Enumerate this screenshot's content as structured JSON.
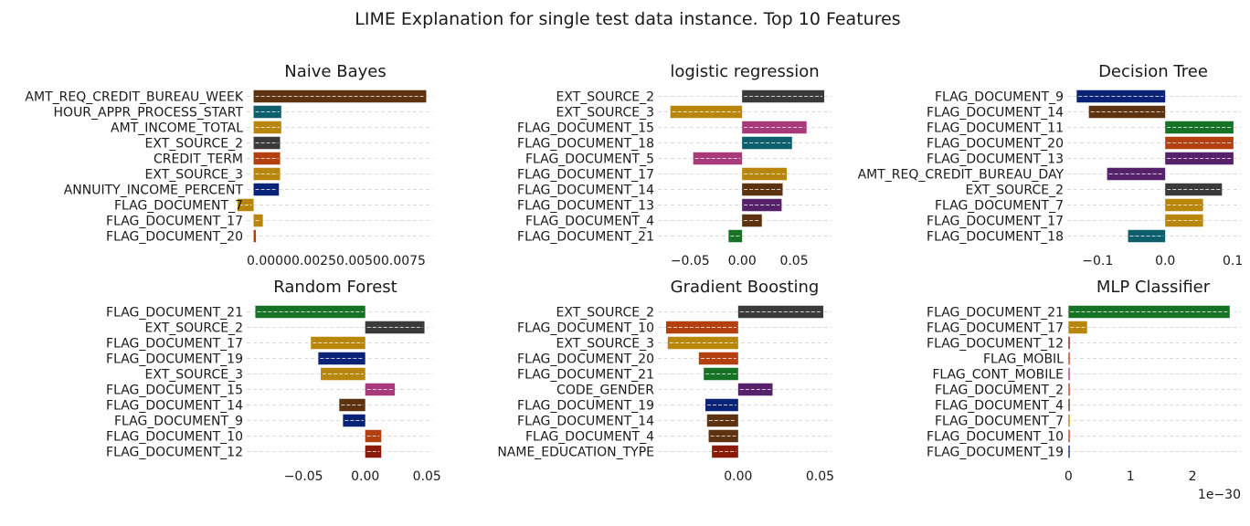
{
  "figure": {
    "title": "LIME Explanation for single test data instance.  Top 10 Features"
  },
  "chart_data": [
    {
      "type": "bar",
      "orientation": "horizontal",
      "title": "Naive Bayes",
      "xlim": [
        -0.0003,
        0.0078
      ],
      "xticks": [
        {
          "v": 0.0,
          "label": "0.0000"
        },
        {
          "v": 0.0025,
          "label": "0.0025"
        },
        {
          "v": 0.005,
          "label": "0.0050"
        },
        {
          "v": 0.0075,
          "label": "0.0075"
        }
      ],
      "xtick_label_combined": "0.00000.00250.00500.0075",
      "grid": true,
      "bars": [
        {
          "feature": "AMT_REQ_CREDIT_BUREAU_WEEK",
          "value": 0.0075,
          "color": "#5c3210"
        },
        {
          "feature": "HOUR_APPR_PROCESS_START",
          "value": 0.0012,
          "color": "#0e5e6b"
        },
        {
          "feature": "AMT_INCOME_TOTAL",
          "value": 0.0012,
          "color": "#b8860b"
        },
        {
          "feature": "EXT_SOURCE_2",
          "value": 0.00115,
          "color": "#3a3a3a"
        },
        {
          "feature": "CREDIT_TERM",
          "value": 0.00115,
          "color": "#b5400f"
        },
        {
          "feature": "EXT_SOURCE_3",
          "value": 0.00115,
          "color": "#b8860b"
        },
        {
          "feature": "ANNUITY_INCOME_PERCENT",
          "value": 0.0011,
          "color": "#0b2376"
        },
        {
          "feature": "FLAG_DOCUMENT_7",
          "value": -0.0007,
          "color": "#b8860b"
        },
        {
          "feature": "FLAG_DOCUMENT_17",
          "value": 0.0004,
          "color": "#b8860b"
        },
        {
          "feature": "FLAG_DOCUMENT_20",
          "value": 0.0001,
          "color": "#b5400f"
        }
      ]
    },
    {
      "type": "bar",
      "orientation": "horizontal",
      "title": "logistic regression",
      "xlim": [
        -0.081,
        0.086
      ],
      "xticks": [
        {
          "v": -0.05,
          "label": "−0.05"
        },
        {
          "v": 0.0,
          "label": "0.00"
        },
        {
          "v": 0.05,
          "label": "0.05"
        }
      ],
      "grid": true,
      "bars": [
        {
          "feature": "EXT_SOURCE_2",
          "value": 0.079,
          "color": "#3a3a3a"
        },
        {
          "feature": "EXT_SOURCE_3",
          "value": -0.069,
          "color": "#b8860b"
        },
        {
          "feature": "FLAG_DOCUMENT_15",
          "value": 0.062,
          "color": "#a83a7c"
        },
        {
          "feature": "FLAG_DOCUMENT_18",
          "value": 0.048,
          "color": "#0e5e6b"
        },
        {
          "feature": "FLAG_DOCUMENT_5",
          "value": -0.047,
          "color": "#a83a7c"
        },
        {
          "feature": "FLAG_DOCUMENT_17",
          "value": 0.043,
          "color": "#b8860b"
        },
        {
          "feature": "FLAG_DOCUMENT_14",
          "value": 0.039,
          "color": "#5c3210"
        },
        {
          "feature": "FLAG_DOCUMENT_13",
          "value": 0.038,
          "color": "#55216b"
        },
        {
          "feature": "FLAG_DOCUMENT_4",
          "value": 0.019,
          "color": "#5c3210"
        },
        {
          "feature": "FLAG_DOCUMENT_21",
          "value": -0.013,
          "color": "#167224"
        }
      ]
    },
    {
      "type": "bar",
      "orientation": "horizontal",
      "title": "Decision Tree",
      "xlim": [
        -0.145,
        0.112
      ],
      "xticks": [
        {
          "v": -0.1,
          "label": "−0.1"
        },
        {
          "v": 0.0,
          "label": "0.0"
        },
        {
          "v": 0.1,
          "label": "0.1"
        }
      ],
      "grid": true,
      "bars": [
        {
          "feature": "FLAG_DOCUMENT_9",
          "value": -0.131,
          "color": "#0b2376"
        },
        {
          "feature": "FLAG_DOCUMENT_14",
          "value": -0.113,
          "color": "#5c3210"
        },
        {
          "feature": "FLAG_DOCUMENT_11",
          "value": 0.101,
          "color": "#167224"
        },
        {
          "feature": "FLAG_DOCUMENT_20",
          "value": 0.101,
          "color": "#b5400f"
        },
        {
          "feature": "FLAG_DOCUMENT_13",
          "value": 0.101,
          "color": "#55216b"
        },
        {
          "feature": "AMT_REQ_CREDIT_BUREAU_DAY",
          "value": -0.086,
          "color": "#55216b"
        },
        {
          "feature": "EXT_SOURCE_2",
          "value": 0.084,
          "color": "#3a3a3a"
        },
        {
          "feature": "FLAG_DOCUMENT_7",
          "value": 0.056,
          "color": "#b8860b"
        },
        {
          "feature": "FLAG_DOCUMENT_17",
          "value": 0.056,
          "color": "#b8860b"
        },
        {
          "feature": "FLAG_DOCUMENT_18",
          "value": -0.055,
          "color": "#0e5e6b"
        }
      ]
    },
    {
      "type": "bar",
      "orientation": "horizontal",
      "title": "Random Forest",
      "xlim": [
        -0.096,
        0.055
      ],
      "xticks": [
        {
          "v": -0.05,
          "label": "−0.05"
        },
        {
          "v": 0.0,
          "label": "0.00"
        },
        {
          "v": 0.05,
          "label": "0.05"
        }
      ],
      "grid": true,
      "bars": [
        {
          "feature": "FLAG_DOCUMENT_21",
          "value": -0.089,
          "color": "#167224"
        },
        {
          "feature": "EXT_SOURCE_2",
          "value": 0.048,
          "color": "#3a3a3a"
        },
        {
          "feature": "FLAG_DOCUMENT_17",
          "value": -0.044,
          "color": "#b8860b"
        },
        {
          "feature": "FLAG_DOCUMENT_19",
          "value": -0.038,
          "color": "#0b2376"
        },
        {
          "feature": "EXT_SOURCE_3",
          "value": -0.036,
          "color": "#b8860b"
        },
        {
          "feature": "FLAG_DOCUMENT_15",
          "value": 0.024,
          "color": "#a83a7c"
        },
        {
          "feature": "FLAG_DOCUMENT_14",
          "value": -0.021,
          "color": "#5c3210"
        },
        {
          "feature": "FLAG_DOCUMENT_9",
          "value": -0.018,
          "color": "#0b2376"
        },
        {
          "feature": "FLAG_DOCUMENT_10",
          "value": 0.013,
          "color": "#b5400f"
        },
        {
          "feature": "FLAG_DOCUMENT_12",
          "value": 0.013,
          "color": "#8b1a0b"
        }
      ]
    },
    {
      "type": "bar",
      "orientation": "horizontal",
      "title": "Gradient Boosting",
      "xlim": [
        -0.049,
        0.057
      ],
      "xticks": [
        {
          "v": 0.0,
          "label": "0.00"
        },
        {
          "v": 0.05,
          "label": "0.05"
        }
      ],
      "grid": true,
      "bars": [
        {
          "feature": "EXT_SOURCE_2",
          "value": 0.052,
          "color": "#3a3a3a"
        },
        {
          "feature": "FLAG_DOCUMENT_10",
          "value": -0.044,
          "color": "#b5400f"
        },
        {
          "feature": "EXT_SOURCE_3",
          "value": -0.043,
          "color": "#b8860b"
        },
        {
          "feature": "FLAG_DOCUMENT_20",
          "value": -0.024,
          "color": "#b5400f"
        },
        {
          "feature": "FLAG_DOCUMENT_21",
          "value": -0.021,
          "color": "#167224"
        },
        {
          "feature": "CODE_GENDER",
          "value": 0.021,
          "color": "#55216b"
        },
        {
          "feature": "FLAG_DOCUMENT_19",
          "value": -0.02,
          "color": "#0b2376"
        },
        {
          "feature": "FLAG_DOCUMENT_14",
          "value": -0.019,
          "color": "#5c3210"
        },
        {
          "feature": "FLAG_DOCUMENT_4",
          "value": -0.018,
          "color": "#5c3210"
        },
        {
          "feature": "NAME_EDUCATION_TYPE",
          "value": -0.016,
          "color": "#8b1a0b"
        }
      ]
    },
    {
      "type": "bar",
      "orientation": "horizontal",
      "title": "MLP Classifier",
      "xlim": [
        -0.02,
        2.78
      ],
      "xticks": [
        {
          "v": 0,
          "label": "0"
        },
        {
          "v": 1,
          "label": "1"
        },
        {
          "v": 2,
          "label": "2"
        }
      ],
      "axis_multiplier_label": "1e−30",
      "grid": true,
      "bars": [
        {
          "feature": "FLAG_DOCUMENT_21",
          "value": 2.6,
          "color": "#167224"
        },
        {
          "feature": "FLAG_DOCUMENT_17",
          "value": 0.3,
          "color": "#b8860b"
        },
        {
          "feature": "FLAG_DOCUMENT_12",
          "value": 0.02,
          "color": "#8b1a0b"
        },
        {
          "feature": "FLAG_MOBIL",
          "value": 0.02,
          "color": "#b5400f"
        },
        {
          "feature": "FLAG_CONT_MOBILE",
          "value": 0.02,
          "color": "#a83a7c"
        },
        {
          "feature": "FLAG_DOCUMENT_2",
          "value": 0.02,
          "color": "#b5400f"
        },
        {
          "feature": "FLAG_DOCUMENT_4",
          "value": 0.02,
          "color": "#5c3210"
        },
        {
          "feature": "FLAG_DOCUMENT_7",
          "value": 0.02,
          "color": "#b8860b"
        },
        {
          "feature": "FLAG_DOCUMENT_10",
          "value": 0.02,
          "color": "#b5400f"
        },
        {
          "feature": "FLAG_DOCUMENT_19",
          "value": 0.02,
          "color": "#0b2376"
        }
      ]
    }
  ]
}
